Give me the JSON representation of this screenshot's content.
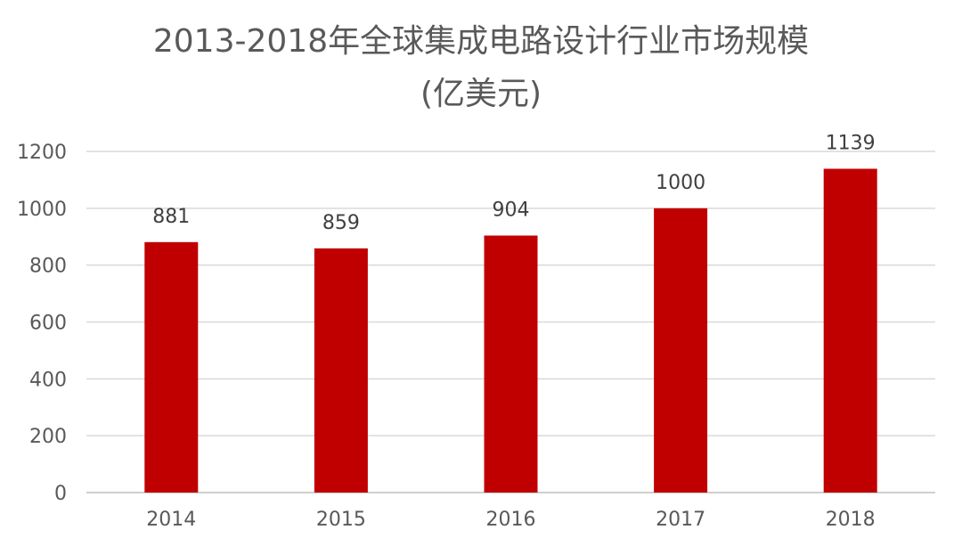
{
  "chart_data": {
    "type": "bar",
    "title": "2013-2018年全球集成电路设计行业市场规模",
    "subtitle": "(亿美元)",
    "categories": [
      "2014",
      "2015",
      "2016",
      "2017",
      "2018"
    ],
    "values": [
      881,
      859,
      904,
      1000,
      1139
    ],
    "data_labels": [
      "881",
      "859",
      "904",
      "1000",
      "1139"
    ],
    "yticks": [
      "0",
      "200",
      "400",
      "600",
      "800",
      "1000",
      "1200"
    ],
    "ylim": [
      0,
      1200
    ],
    "grid": true,
    "legend": "none",
    "bar_color": "#c00000"
  }
}
